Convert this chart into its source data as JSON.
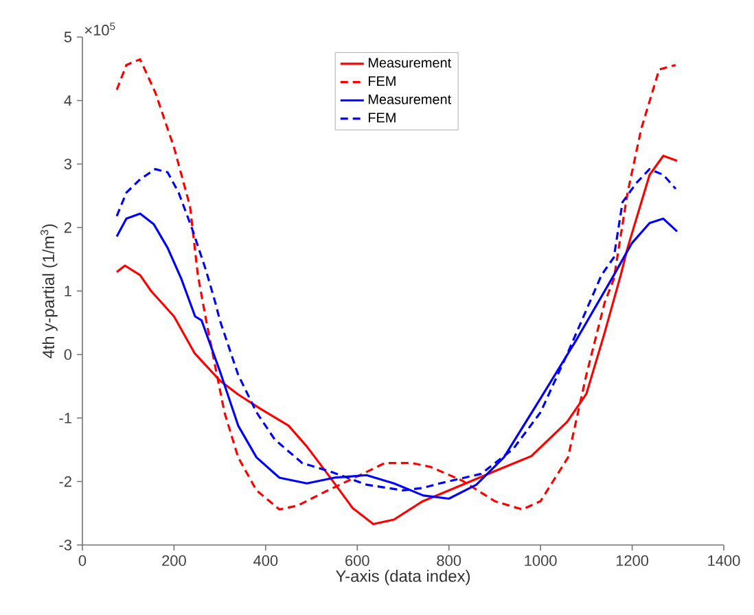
{
  "chart_data": {
    "type": "line",
    "xlabel": "Y-axis (data index)",
    "ylabel": "4th y-partial (1/m$^{3}$)",
    "annotations": [
      "×10$^{5}$"
    ],
    "xlim": [
      0,
      1400
    ],
    "xticks": [
      0,
      200,
      400,
      600,
      800,
      1000,
      1200,
      1400
    ],
    "ylim": [
      -3,
      5
    ],
    "yticks": [
      -3,
      -2,
      -1,
      0,
      1,
      2,
      3,
      4,
      5
    ],
    "grid": false,
    "legend": "top",
    "marker": "none",
    "series": [
      {
        "name": "Measurement",
        "color": "#ff0000",
        "line_style": "solid",
        "x": [
          75,
          93,
          126,
          150,
          200,
          245,
          300,
          340,
          390,
          450,
          490,
          535,
          590,
          635,
          680,
          743,
          800,
          899,
          980,
          1058,
          1100,
          1139,
          1175,
          1190,
          1238,
          1268,
          1298
        ],
        "values": [
          1.3,
          1.4,
          1.25,
          1.0,
          0.6,
          0.02,
          -0.41,
          -0.63,
          -0.86,
          -1.12,
          -1.45,
          -1.88,
          -2.42,
          -2.67,
          -2.6,
          -2.31,
          -2.14,
          -1.84,
          -1.6,
          -1.06,
          -0.62,
          0.32,
          1.25,
          1.68,
          2.83,
          3.13,
          3.05
        ]
      },
      {
        "name": "FEM",
        "color": "#ff0000",
        "line_style": "dashed",
        "x": [
          75,
          96,
          126,
          159,
          200,
          235,
          252,
          270,
          290,
          310,
          340,
          380,
          430,
          470,
          530,
          600,
          660,
          720,
          760,
          830,
          900,
          960,
          1000,
          1060,
          1100,
          1140,
          1160,
          1190,
          1220,
          1259,
          1295
        ],
        "values": [
          4.17,
          4.56,
          4.65,
          4.13,
          3.26,
          2.33,
          1.25,
          0.54,
          -0.19,
          -0.91,
          -1.62,
          -2.14,
          -2.44,
          -2.38,
          -2.16,
          -1.92,
          -1.71,
          -1.71,
          -1.77,
          -1.99,
          -2.31,
          -2.44,
          -2.31,
          -1.62,
          -0.32,
          0.82,
          1.19,
          2.55,
          3.56,
          4.49,
          4.56
        ]
      },
      {
        "name": "Measurement",
        "color": "#0000ff",
        "line_style": "solid",
        "x": [
          75,
          96,
          126,
          156,
          186,
          216,
          246,
          260,
          300,
          340,
          380,
          430,
          490,
          550,
          620,
          680,
          744,
          800,
          860,
          920,
          1000,
          1079,
          1160,
          1199,
          1238,
          1268,
          1298
        ],
        "values": [
          1.86,
          2.14,
          2.22,
          2.05,
          1.68,
          1.19,
          0.6,
          0.54,
          -0.26,
          -1.12,
          -1.62,
          -1.94,
          -2.03,
          -1.94,
          -1.9,
          -2.03,
          -2.22,
          -2.27,
          -2.05,
          -1.62,
          -0.69,
          0.24,
          1.25,
          1.75,
          2.07,
          2.14,
          1.94
        ]
      },
      {
        "name": "FEM",
        "color": "#0000ff",
        "line_style": "dashed",
        "x": [
          75,
          96,
          126,
          159,
          186,
          210,
          240,
          270,
          290,
          300,
          340,
          380,
          420,
          480,
          540,
          620,
          700,
          744,
          780,
          870,
          940,
          1000,
          1059,
          1133,
          1160,
          1179,
          1209,
          1238,
          1268,
          1295
        ],
        "values": [
          2.18,
          2.55,
          2.76,
          2.92,
          2.87,
          2.55,
          1.97,
          1.32,
          0.82,
          0.54,
          -0.32,
          -0.91,
          -1.34,
          -1.71,
          -1.84,
          -2.05,
          -2.14,
          -2.1,
          -2.03,
          -1.88,
          -1.49,
          -0.91,
          0.02,
          1.25,
          1.53,
          2.4,
          2.7,
          2.92,
          2.83,
          2.61
        ]
      }
    ]
  }
}
